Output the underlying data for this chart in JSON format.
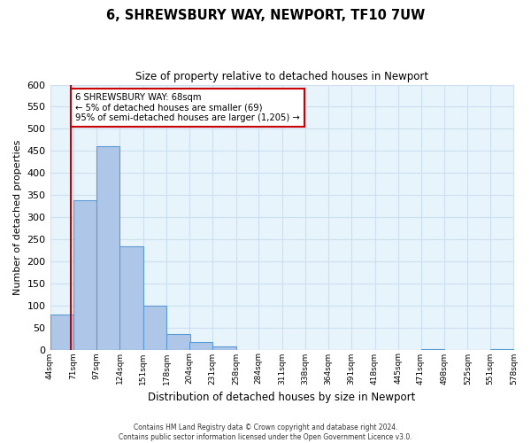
{
  "title": "6, SHREWSBURY WAY, NEWPORT, TF10 7UW",
  "subtitle": "Size of property relative to detached houses in Newport",
  "xlabel": "Distribution of detached houses by size in Newport",
  "ylabel": "Number of detached properties",
  "footer_line1": "Contains HM Land Registry data © Crown copyright and database right 2024.",
  "footer_line2": "Contains public sector information licensed under the Open Government Licence v3.0.",
  "bar_left_edges": [
    44,
    71,
    97,
    124,
    151,
    178,
    204,
    231,
    258,
    284,
    311,
    338,
    364,
    391,
    418,
    445,
    471,
    498,
    525,
    551
  ],
  "bar_heights": [
    80,
    338,
    460,
    233,
    99,
    35,
    18,
    8,
    0,
    0,
    0,
    0,
    0,
    0,
    0,
    0,
    2,
    0,
    0,
    2
  ],
  "bin_width": 27,
  "bar_color": "#aec6e8",
  "bar_edge_color": "#5b9bd5",
  "grid_color": "#cce0f0",
  "background_color": "#e8f4fc",
  "vline_x": 68,
  "vline_color": "#cc0000",
  "annotation_text_line1": "6 SHREWSBURY WAY: 68sqm",
  "annotation_text_line2": "← 5% of detached houses are smaller (69)",
  "annotation_text_line3": "95% of semi-detached houses are larger (1,205) →",
  "ylim": [
    0,
    600
  ],
  "yticks": [
    0,
    50,
    100,
    150,
    200,
    250,
    300,
    350,
    400,
    450,
    500,
    550,
    600
  ],
  "xtick_labels": [
    "44sqm",
    "71sqm",
    "97sqm",
    "124sqm",
    "151sqm",
    "178sqm",
    "204sqm",
    "231sqm",
    "258sqm",
    "284sqm",
    "311sqm",
    "338sqm",
    "364sqm",
    "391sqm",
    "418sqm",
    "445sqm",
    "471sqm",
    "498sqm",
    "525sqm",
    "551sqm",
    "578sqm"
  ]
}
